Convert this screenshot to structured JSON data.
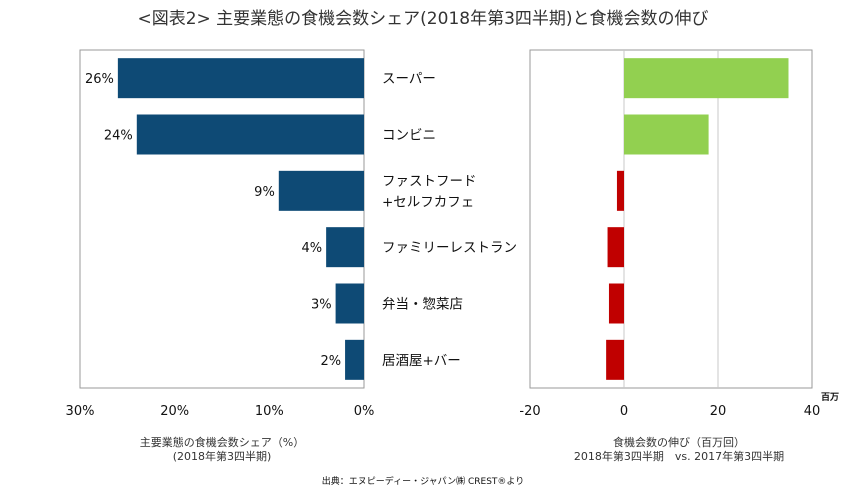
{
  "title": "<図表2> 主要業態の食機会数シェア(2018年第3四半期)と食機会数の伸び",
  "source": "出典：エヌピーディー・ジャパン㈱ CREST®より",
  "colors": {
    "share_bar": "#0e4a75",
    "growth_positive": "#92d050",
    "growth_negative": "#c00000"
  },
  "chart_data": [
    {
      "type": "bar",
      "orientation": "horizontal",
      "x_reversed": true,
      "categories": [
        "スーパー",
        "コンビニ",
        "ファストフード\n+セルフカフェ",
        "ファミリーレストラン",
        "弁当・惣菜店",
        "居酒屋+バー"
      ],
      "category_lines": [
        [
          "スーパー"
        ],
        [
          "コンビニ"
        ],
        [
          "ファストフード",
          "+セルフカフェ"
        ],
        [
          "ファミリーレストラン"
        ],
        [
          "弁当・惣菜店"
        ],
        [
          "居酒屋+バー"
        ]
      ],
      "values": [
        26,
        24,
        9,
        4,
        3,
        2
      ],
      "value_labels": [
        "26%",
        "24%",
        "9%",
        "4%",
        "3%",
        "2%"
      ],
      "xlim": [
        0,
        30
      ],
      "ticks": [
        0,
        10,
        20,
        30
      ],
      "tick_labels": [
        "0%",
        "10%",
        "20%",
        "30%"
      ],
      "xlabel": "主要業態の食機会数シェア（%）",
      "xlabel2": "(2018年第3四半期)",
      "grid": false
    },
    {
      "type": "bar",
      "orientation": "horizontal",
      "categories": [
        "スーパー",
        "コンビニ",
        "ファストフード\n+セルフカフェ",
        "ファミリーレストラン",
        "弁当・惣菜店",
        "居酒屋+バー"
      ],
      "values": [
        35,
        18,
        -1.5,
        -3.5,
        -3.2,
        -3.8
      ],
      "xlim": [
        -20,
        40
      ],
      "ticks": [
        -20,
        0,
        20,
        40
      ],
      "tick_labels": [
        "-20",
        "0",
        "20",
        "40"
      ],
      "unit_label": "百万",
      "xlabel": "食機会数の伸び（百万回）",
      "xlabel2": "2018年第3四半期　vs. 2017年第3四半期",
      "grid": "vertical"
    }
  ]
}
